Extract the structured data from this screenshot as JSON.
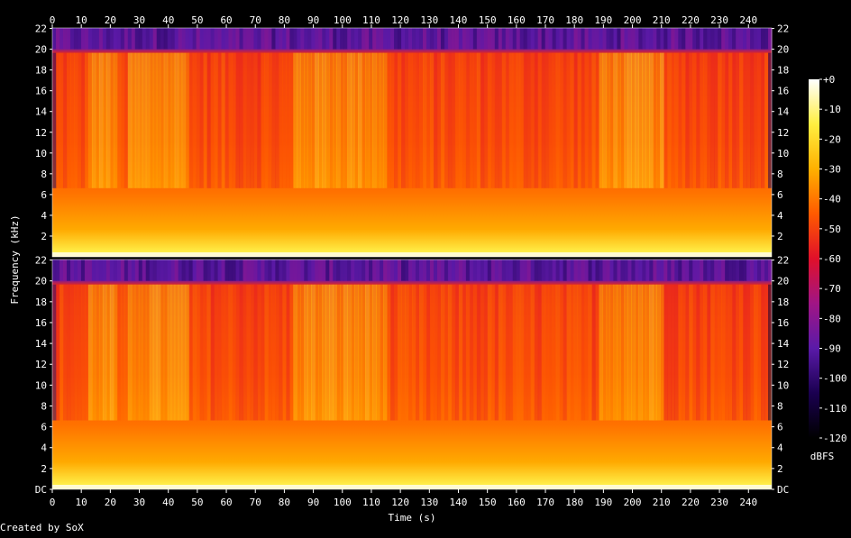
{
  "chart_data": {
    "type": "heatmap",
    "title": "",
    "xlabel": "Time (s)",
    "ylabel": "Frequency (kHz)",
    "x_range": [
      0,
      248
    ],
    "x_ticks": [
      "0",
      "10",
      "20",
      "30",
      "40",
      "50",
      "60",
      "70",
      "80",
      "90",
      "100",
      "110",
      "120",
      "130",
      "140",
      "150",
      "160",
      "170",
      "180",
      "190",
      "200",
      "210",
      "220",
      "230",
      "240"
    ],
    "y_range_khz": [
      0,
      22.05
    ],
    "y_ticks": [
      "DC",
      "2",
      "4",
      "6",
      "8",
      "10",
      "12",
      "14",
      "16",
      "18",
      "20",
      "22"
    ],
    "channels": 2,
    "colorbar": {
      "label": "dBFS",
      "range": [
        -120,
        0
      ],
      "ticks": [
        "+0",
        "-10",
        "-20",
        "-30",
        "-40",
        "-50",
        "-60",
        "-70",
        "-80",
        "-90",
        "-100",
        "-110",
        "-120"
      ]
    },
    "observed_energy": {
      "bandwidth_khz": 20,
      "notes_segments": [
        {
          "start_s": 0,
          "end_s": 1,
          "level": "quiet"
        },
        {
          "start_s": 12,
          "end_s": 22,
          "level": "loud"
        },
        {
          "start_s": 25,
          "end_s": 47,
          "level": "loud"
        },
        {
          "start_s": 82,
          "end_s": 92,
          "level": "loud"
        },
        {
          "start_s": 92,
          "end_s": 115,
          "level": "loud"
        },
        {
          "start_s": 188,
          "end_s": 210,
          "level": "loud"
        },
        {
          "start_s": 246,
          "end_s": 248,
          "level": "quiet"
        }
      ]
    }
  },
  "footer": {
    "credit": "Created by SoX"
  },
  "colors": {
    "background": "#000000",
    "palette": [
      "#000000",
      "#1a0050",
      "#5a1aa8",
      "#a01585",
      "#e0102a",
      "#ff5a00",
      "#ffb000",
      "#ffee40",
      "#ffffff"
    ]
  }
}
